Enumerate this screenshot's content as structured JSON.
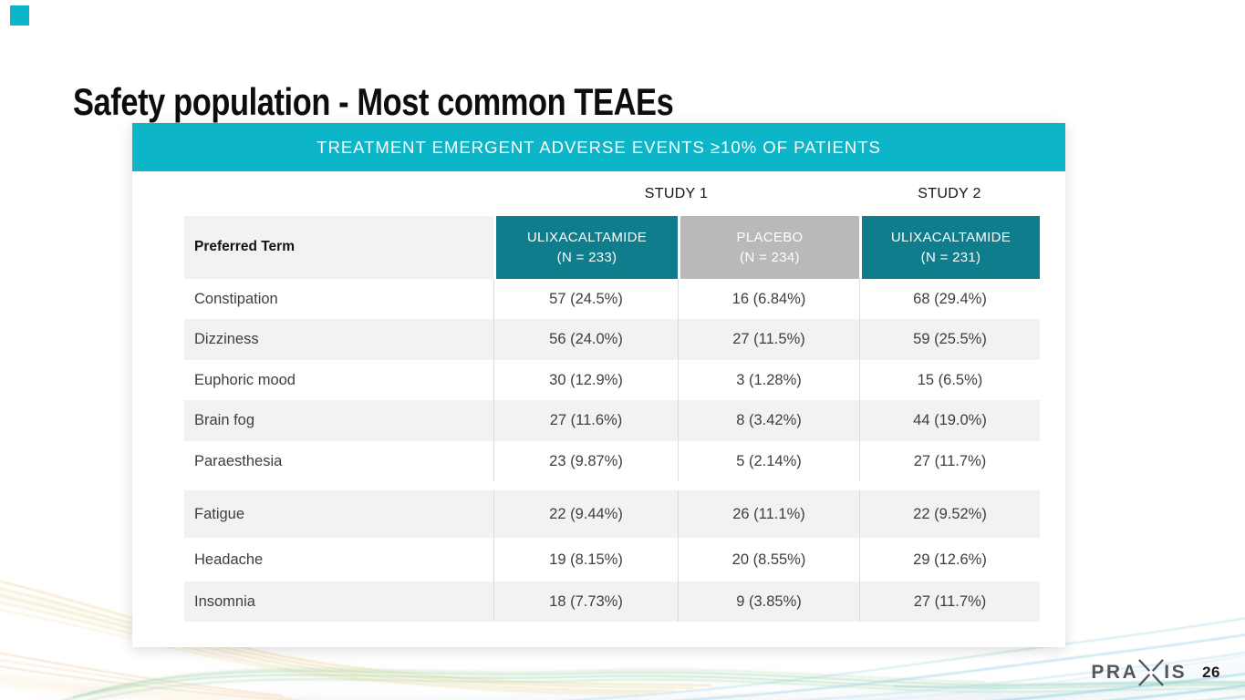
{
  "slide": {
    "title": "Safety population - Most common TEAEs",
    "page_number": "26",
    "logo": {
      "left": "PRA",
      "right": "IS"
    }
  },
  "table": {
    "banner": "TREATMENT EMERGENT ADVERSE EVENTS ≥10% OF PATIENTS",
    "study1_label": "STUDY 1",
    "study2_label": "STUDY 2",
    "preferred_term_header": "Preferred Term",
    "columns": [
      {
        "drug": "ULIXACALTAMIDE",
        "n": "(N = 233)"
      },
      {
        "drug": "PLACEBO",
        "n": "(N = 234)"
      },
      {
        "drug": "ULIXACALTAMIDE",
        "n": "(N = 231)"
      }
    ],
    "rows": [
      {
        "term": "Constipation",
        "values": [
          "57 (24.5%)",
          "16 (6.84%)",
          "68 (29.4%)"
        ]
      },
      {
        "term": "Dizziness",
        "values": [
          "56 (24.0%)",
          "27 (11.5%)",
          "59 (25.5%)"
        ]
      },
      {
        "term": "Euphoric mood",
        "values": [
          "30 (12.9%)",
          "3 (1.28%)",
          "15 (6.5%)"
        ]
      },
      {
        "term": "Brain fog",
        "values": [
          "27 (11.6%)",
          "8 (3.42%)",
          "44 (19.0%)"
        ]
      },
      {
        "term": "Paraesthesia",
        "values": [
          "23 (9.87%)",
          "5 (2.14%)",
          "27 (11.7%)"
        ]
      },
      {
        "term": "Fatigue",
        "values": [
          "22 (9.44%)",
          "26 (11.1%)",
          "22 (9.52%)"
        ]
      },
      {
        "term": "Headache",
        "values": [
          "19 (8.15%)",
          "20 (8.55%)",
          "29 (12.6%)"
        ]
      },
      {
        "term": "Insomnia",
        "values": [
          "18 (7.73%)",
          "9 (3.85%)",
          "27 (11.7%)"
        ]
      }
    ]
  },
  "colors": {
    "banner_teal": "#0db5c9",
    "header_teal": "#0f7d8c",
    "placebo_gray": "#b9b9b9",
    "stripe_gray": "#f2f2f2",
    "logo_gray": "#53565a"
  }
}
